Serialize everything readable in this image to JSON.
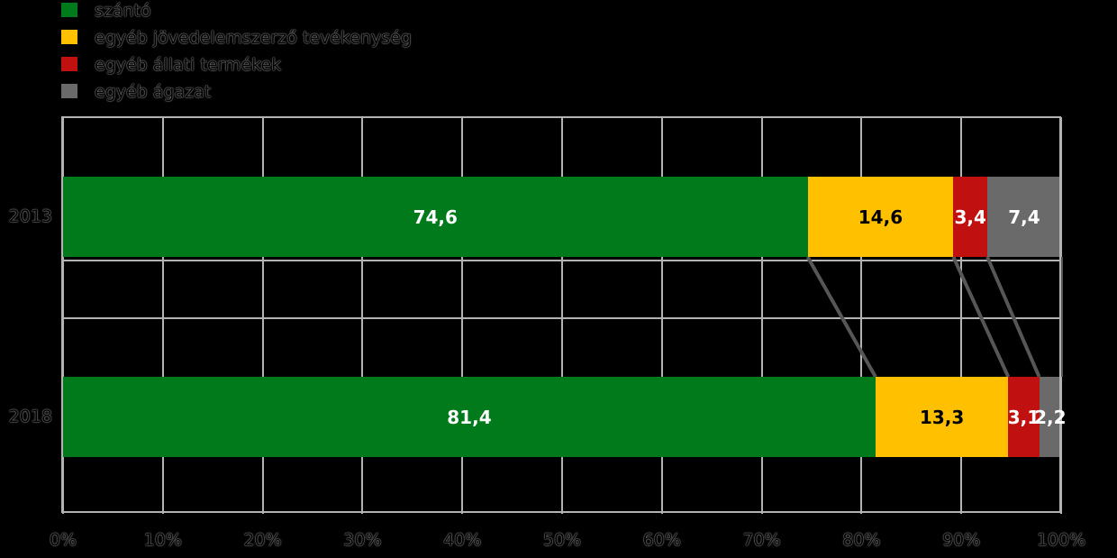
{
  "chart_data": {
    "type": "bar",
    "orientation": "horizontal_stacked",
    "unit": "%",
    "categories": [
      "2013",
      "2018"
    ],
    "series": [
      {
        "name": "szántó",
        "color": "#017A1C",
        "label_color": "#ffffff",
        "values": [
          74.6,
          81.4
        ],
        "value_labels": [
          "74,6",
          "81,4"
        ]
      },
      {
        "name": "egyéb jövedelemszerző tevékenység",
        "color": "#FFC000",
        "label_color": "#000000",
        "values": [
          14.6,
          13.3
        ],
        "value_labels": [
          "14,6",
          "13,3"
        ]
      },
      {
        "name": "egyéb állati termékek",
        "color": "#C01010",
        "label_color": "#ffffff",
        "values": [
          3.4,
          3.1
        ],
        "value_labels": [
          "3,4",
          "3,1"
        ]
      },
      {
        "name": "egyéb ágazat",
        "color": "#6A6A6A",
        "label_color": "#ffffff",
        "values": [
          7.4,
          2.2
        ],
        "value_labels": [
          "7,4",
          "2,2"
        ]
      }
    ],
    "x_ticks": [
      "0%",
      "10%",
      "20%",
      "30%",
      "40%",
      "50%",
      "60%",
      "70%",
      "80%",
      "90%",
      "100%"
    ],
    "xlim": [
      0,
      100
    ],
    "grid": true,
    "legend_position": "top-left",
    "connectors": true,
    "title": "",
    "xlabel": "",
    "ylabel": ""
  },
  "style": {
    "gridline_color": "#b3b3b3",
    "connector_color": "#565656",
    "background": "#000000"
  }
}
